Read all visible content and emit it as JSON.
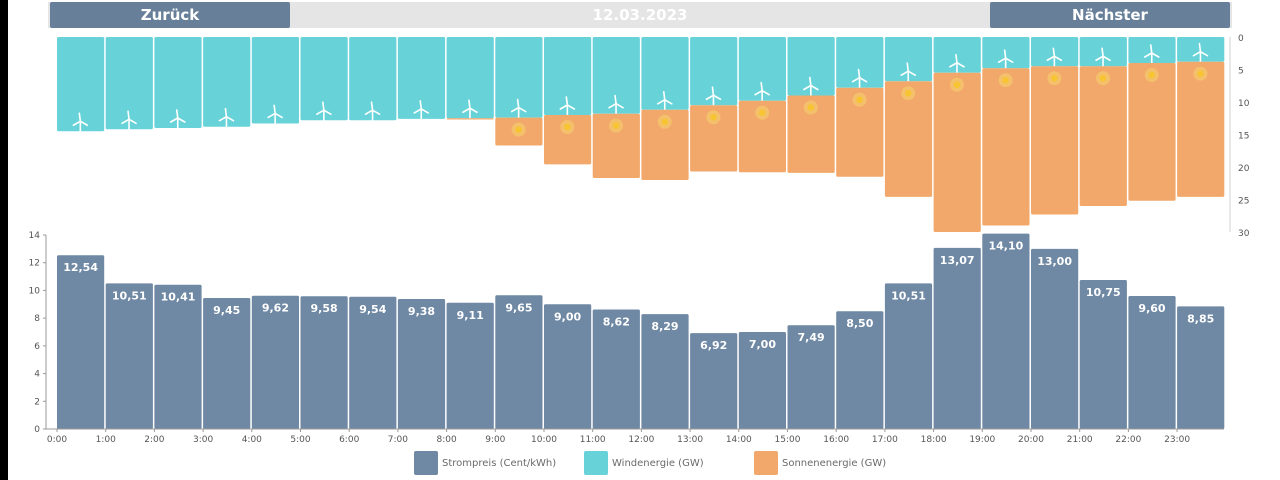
{
  "nav": {
    "back_label": "Zurück",
    "date": "12.03.2023",
    "next_label": "Nächster"
  },
  "colors": {
    "price": "#6f88a4",
    "wind": "#67d3d9",
    "solar": "#f2a86b",
    "sun": "#f7c531",
    "text": "#555555"
  },
  "chart_data": [
    {
      "type": "bar",
      "stacked": true,
      "orientation": "hanging-from-top",
      "categories": [
        "0:00",
        "1:00",
        "2:00",
        "3:00",
        "4:00",
        "5:00",
        "6:00",
        "7:00",
        "8:00",
        "9:00",
        "10:00",
        "11:00",
        "12:00",
        "13:00",
        "14:00",
        "15:00",
        "16:00",
        "17:00",
        "18:00",
        "19:00",
        "20:00",
        "21:00",
        "22:00",
        "23:00"
      ],
      "series": [
        {
          "name": "Windenergie (GW)",
          "values": [
            14.5,
            14.2,
            14.0,
            13.8,
            13.3,
            12.8,
            12.8,
            12.6,
            12.5,
            12.4,
            12.0,
            11.8,
            11.2,
            10.5,
            9.8,
            9.0,
            7.8,
            6.8,
            5.5,
            4.8,
            4.5,
            4.5,
            4.0,
            3.8
          ],
          "icon": "wind-turbine-icon"
        },
        {
          "name": "Sonnenenergie (GW)",
          "values": [
            0,
            0,
            0,
            0,
            0,
            0,
            0,
            0,
            0.2,
            4.3,
            7.6,
            9.9,
            10.8,
            10.2,
            11.0,
            11.9,
            13.7,
            17.8,
            24.5,
            24.2,
            22.8,
            21.5,
            21.2,
            20.8
          ],
          "icon": "sun-icon"
        }
      ],
      "yticks": [
        "0",
        "5",
        "10",
        "15",
        "20",
        "25",
        "30"
      ],
      "ylim": [
        0,
        30
      ],
      "axis_side": "right"
    },
    {
      "type": "bar",
      "categories": [
        "0:00",
        "1:00",
        "2:00",
        "3:00",
        "4:00",
        "5:00",
        "6:00",
        "7:00",
        "8:00",
        "9:00",
        "10:00",
        "11:00",
        "12:00",
        "13:00",
        "14:00",
        "15:00",
        "16:00",
        "17:00",
        "18:00",
        "19:00",
        "20:00",
        "21:00",
        "22:00",
        "23:00"
      ],
      "series": [
        {
          "name": "Strompreis (Cent/kWh)",
          "values": [
            12.54,
            10.51,
            10.41,
            9.45,
            9.62,
            9.58,
            9.54,
            9.38,
            9.11,
            9.65,
            9.0,
            8.62,
            8.29,
            6.92,
            7.0,
            7.49,
            8.5,
            10.51,
            13.07,
            14.1,
            13.0,
            10.75,
            9.6,
            8.85
          ]
        }
      ],
      "labels": [
        "12,54",
        "10,51",
        "10,41",
        "9,45",
        "9,62",
        "9,58",
        "9,54",
        "9,38",
        "9,11",
        "9,65",
        "9,00",
        "8,62",
        "8,29",
        "6,92",
        "7,00",
        "7,49",
        "8,50",
        "10,51",
        "13,07",
        "14,10",
        "13,00",
        "10,75",
        "9,60",
        "8,85"
      ],
      "yticks": [
        "0",
        "2",
        "4",
        "6",
        "8",
        "10",
        "12",
        "14"
      ],
      "ylim": [
        0,
        14
      ]
    }
  ],
  "legend": [
    {
      "label": "Strompreis (Cent/kWh)",
      "color": "#6f88a4"
    },
    {
      "label": "Windenergie (GW)",
      "color": "#67d3d9"
    },
    {
      "label": "Sonnenenergie (GW)",
      "color": "#f2a86b"
    }
  ]
}
